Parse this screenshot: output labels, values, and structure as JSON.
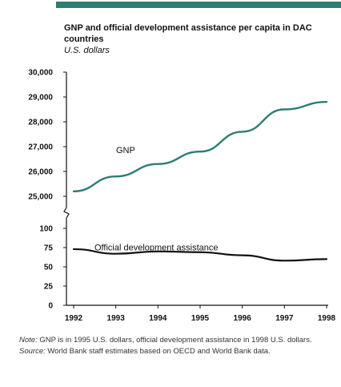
{
  "chart_data": {
    "type": "line",
    "title": "GNP and official development assistance per capita in DAC countries",
    "subtitle": "U.S. dollars",
    "x": [
      "1992",
      "1993",
      "1994",
      "1995",
      "1996",
      "1997",
      "1998"
    ],
    "upper_axis": {
      "ylim": [
        25000,
        30000
      ],
      "ticks": [
        "30,000",
        "29,000",
        "28,000",
        "27,000",
        "26,000",
        "25,000"
      ],
      "tick_values": [
        30000,
        29000,
        28000,
        27000,
        26000,
        25000
      ]
    },
    "lower_axis": {
      "ylim": [
        0,
        100
      ],
      "ticks": [
        "100",
        "75",
        "50",
        "25",
        "0"
      ],
      "tick_values": [
        100,
        75,
        50,
        25,
        0
      ]
    },
    "axis_break": true,
    "series": [
      {
        "name": "GNP",
        "axis": "upper",
        "color": "#2e7d73",
        "values": [
          25200,
          25800,
          26300,
          26800,
          27600,
          28500,
          28800
        ]
      },
      {
        "name": "Official development assistance",
        "axis": "lower",
        "color": "#111111",
        "values": [
          73,
          67,
          70,
          69,
          65,
          58,
          60
        ]
      }
    ],
    "grid": false
  },
  "notes": {
    "note_lead": "Note:",
    "note_text": " GNP is in 1995 U.S. dollars, official development assistance in 1998 U.S. dollars.",
    "source_lead": "Source:",
    "source_text": " World Bank staff estimates based on OECD and World Bank data."
  },
  "colors": {
    "accent": "#2e7d73"
  }
}
